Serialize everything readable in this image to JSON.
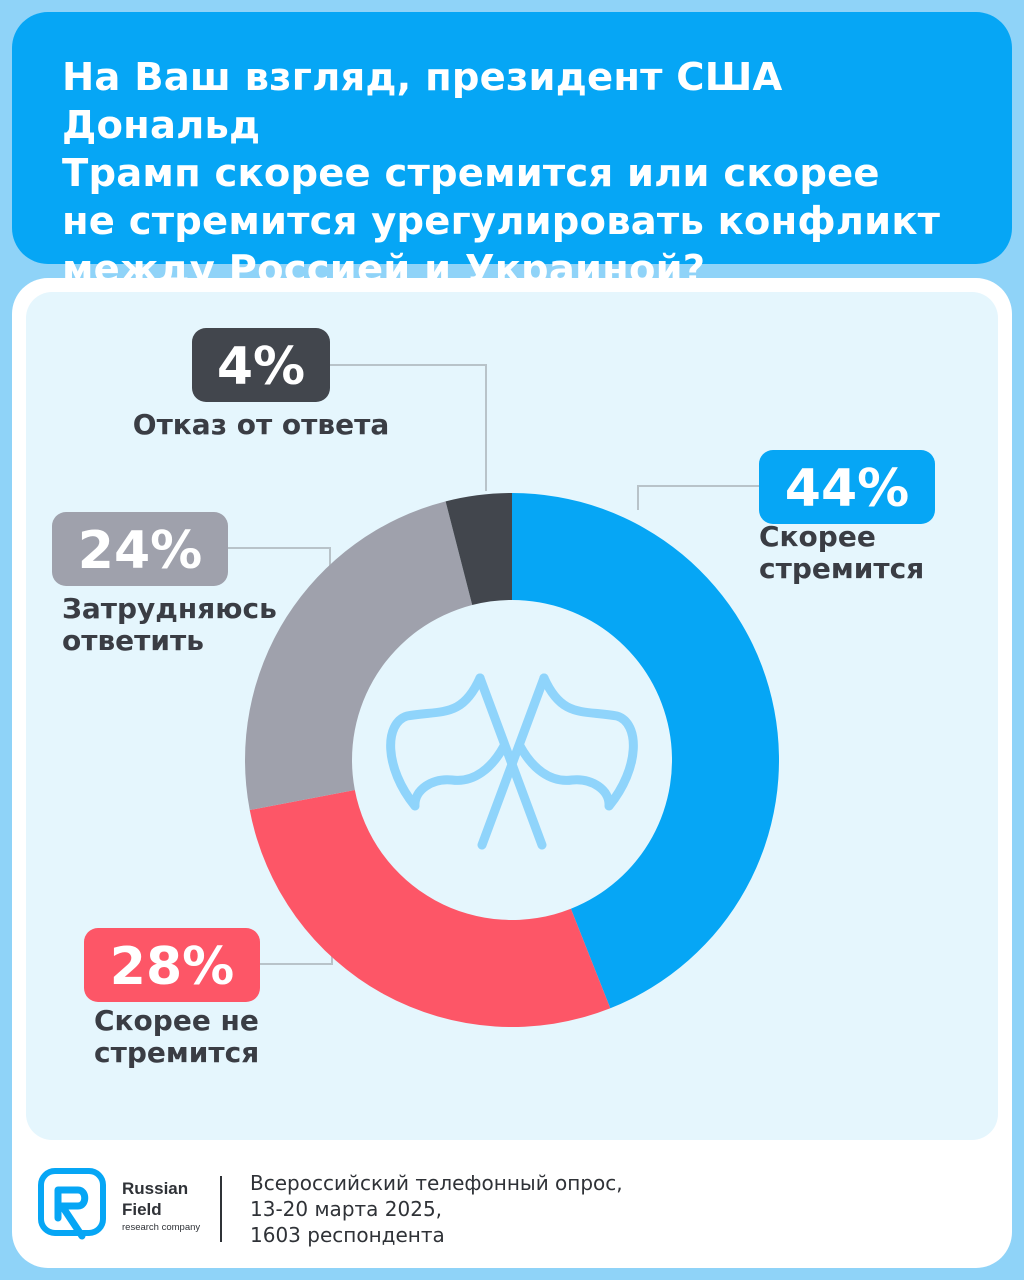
{
  "header": {
    "title_lines": [
      "На Ваш взгляд, президент США Дональд",
      "Трамп скорее стремится или скорее",
      "не стремится урегулировать конфликт",
      "между Россией и Украиной?"
    ]
  },
  "chart_data": {
    "type": "pie",
    "donut": true,
    "title": "На Ваш взгляд, президент США Дональд Трамп скорее стремится или скорее не стремится урегулировать конфликт между Россией и Украиной?",
    "categories": [
      "Скорее стремится",
      "Скорее не стремится",
      "Затрудняюсь ответить",
      "Отказ от ответа"
    ],
    "values": [
      44,
      28,
      24,
      4
    ],
    "value_labels": [
      "44%",
      "28%",
      "24%",
      "4%"
    ],
    "label_lines": [
      [
        "Скорее",
        "стремится"
      ],
      [
        "Скорее не",
        "стремится"
      ],
      [
        "Затрудняюсь",
        "ответить"
      ],
      [
        "Отказ от ответа"
      ]
    ],
    "colors": [
      "#06a6f5",
      "#fd5667",
      "#9fa1ac",
      "#42464d"
    ],
    "center_icon": "crossed-flags-icon"
  },
  "footer": {
    "brand_name_lines": [
      "Russian",
      "Field"
    ],
    "brand_tagline": "research company",
    "source_lines": [
      "Всероссийский телефонный опрос,",
      "13-20 марта 2025,",
      "1603 респондента"
    ]
  }
}
